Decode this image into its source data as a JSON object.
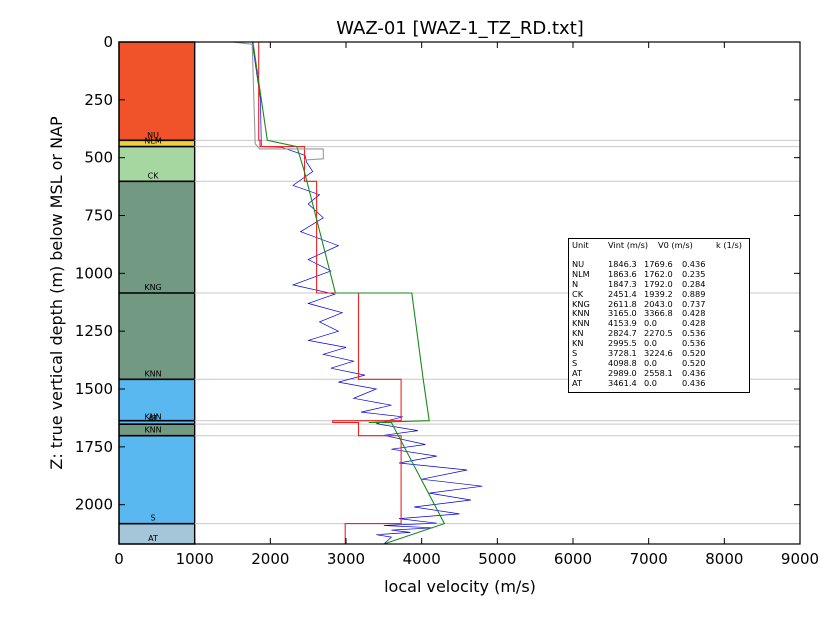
{
  "chart_data": {
    "type": "line",
    "title": "WAZ-01 [WAZ-1_TZ_RD.txt]",
    "xlabel": "local velocity (m/s)",
    "ylabel": "Z: true vertical depth (m) below MSL or NAP",
    "xlim": [
      0,
      9000
    ],
    "ylim": [
      2170,
      0
    ],
    "x_ticks": [
      "0",
      "1000",
      "2000",
      "3000",
      "4000",
      "5000",
      "6000",
      "7000",
      "8000",
      "9000"
    ],
    "y_ticks": [
      "0",
      "250",
      "500",
      "750",
      "1000",
      "1250",
      "1500",
      "1750",
      "2000"
    ],
    "y_tick_values": [
      0,
      250,
      500,
      750,
      1000,
      1250,
      1500,
      1750,
      2000
    ],
    "x_tick_values": [
      0,
      1000,
      2000,
      3000,
      4000,
      5000,
      6000,
      7000,
      8000,
      9000
    ],
    "strat_column": {
      "x_range": [
        0,
        1000
      ],
      "units": [
        {
          "label": "",
          "top": 0,
          "bottom": 425,
          "color": "#f0522a"
        },
        {
          "label": "NU",
          "top": 425,
          "bottom": 427,
          "color": "#f0522a"
        },
        {
          "label": "NLM",
          "top": 427,
          "bottom": 452,
          "color": "#f0d13a"
        },
        {
          "label": "CK",
          "top": 452,
          "bottom": 602,
          "color": "#a6d7a0"
        },
        {
          "label": "KNG",
          "top": 602,
          "bottom": 1085,
          "color": "#729a82"
        },
        {
          "label": "KNN",
          "top": 1085,
          "bottom": 1458,
          "color": "#729a82"
        },
        {
          "label": "KNN",
          "top": 1458,
          "bottom": 1645,
          "color": "#58b8ef"
        },
        {
          "label": "AT",
          "top": 1645,
          "bottom": 1652,
          "color": "#58b8ef"
        },
        {
          "label": "KNN",
          "top": 1652,
          "bottom": 1702,
          "color": "#729a82"
        },
        {
          "label": "S",
          "top": 1702,
          "bottom": 2082,
          "color": "#58b8ef"
        },
        {
          "label": "AT",
          "top": 2082,
          "bottom": 2170,
          "color": "#a4c6d8"
        }
      ],
      "boundaries": [
        425,
        452,
        602,
        1085,
        1458,
        1637,
        1652,
        1702,
        2082
      ]
    },
    "series": [
      {
        "color": "#0000dd",
        "x": [
          1760,
          1870,
          1880,
          2150,
          2460,
          2480,
          2560,
          2300,
          2650,
          2500,
          2700,
          2400,
          2900,
          2500,
          2800,
          2300,
          2850,
          2500,
          2950,
          2650,
          2900,
          2500,
          3000,
          2700,
          3100,
          2800,
          3250,
          2900,
          3400,
          3100,
          3600,
          3200,
          3750,
          3400,
          3950,
          3500,
          4050,
          3600,
          4200,
          3700,
          4600,
          4000,
          4800,
          4100,
          4650,
          3900,
          4500,
          3700,
          4200,
          3500,
          4150,
          3600,
          3850,
          3400,
          3600,
          3500
        ],
        "y": [
          0,
          250,
          452,
          455,
          490,
          520,
          560,
          620,
          660,
          700,
          760,
          820,
          880,
          940,
          990,
          1050,
          1090,
          1130,
          1170,
          1210,
          1250,
          1290,
          1320,
          1350,
          1380,
          1410,
          1440,
          1470,
          1500,
          1540,
          1570,
          1600,
          1620,
          1650,
          1680,
          1700,
          1740,
          1760,
          1790,
          1820,
          1850,
          1890,
          1920,
          1950,
          1980,
          2010,
          2040,
          2060,
          2080,
          2090,
          2100,
          2110,
          2120,
          2130,
          2140,
          2170
        ]
      },
      {
        "color": "#ee2222",
        "x": [
          1846.3,
          1846.3,
          1863.6,
          1863.6,
          2451.4,
          2451.4,
          2611.8,
          2611.8,
          3165.0,
          3165.0,
          3728.1,
          3728.1,
          2824.7,
          2824.7,
          3165.0,
          3165.0,
          3728.1,
          3728.1,
          2989.0,
          2989.0
        ],
        "y": [
          0,
          425,
          425,
          452,
          452,
          602,
          602,
          1085,
          1085,
          1458,
          1458,
          1637,
          1637,
          1645,
          1645,
          1702,
          1702,
          2082,
          2082,
          2170
        ]
      },
      {
        "color": "#1a8a1a",
        "x": [
          1769.6,
          1960,
          2350,
          2450,
          2860,
          3870,
          4020,
          4100,
          3300,
          3600,
          4300,
          3500
        ],
        "y": [
          0,
          425,
          452,
          560,
          1085,
          1085,
          1458,
          1637,
          1645,
          1645,
          2082,
          2170
        ]
      },
      {
        "color": "#999999",
        "x": [
          1500,
          1760,
          1800,
          1860,
          2700,
          2700,
          2450
        ],
        "y": [
          0,
          10,
          440,
          462,
          462,
          505,
          510
        ]
      }
    ],
    "grid": false,
    "legend": "none"
  },
  "table": {
    "header": [
      "Unit",
      "Vint (m/s)",
      "V0 (m/s)",
      "k (1/s)"
    ],
    "rows": [
      [
        "NU",
        "1846.3",
        "1769.6",
        "0.436"
      ],
      [
        "NLM",
        "1863.6",
        "1762.0",
        "0.235"
      ],
      [
        "N",
        "1847.3",
        "1792.0",
        "0.284"
      ],
      [
        "CK",
        "2451.4",
        "1939.2",
        "0.889"
      ],
      [
        "KNG",
        "2611.8",
        "2043.0",
        "0.737"
      ],
      [
        "KNN",
        "3165.0",
        "3366.8",
        "0.428"
      ],
      [
        "KNN",
        "4153.9",
        "0.0",
        "0.428"
      ],
      [
        "KN",
        "2824.7",
        "2270.5",
        "0.536"
      ],
      [
        "KN",
        "2995.5",
        "0.0",
        "0.536"
      ],
      [
        "S",
        "3728.1",
        "3224.6",
        "0.520"
      ],
      [
        "S",
        "4098.8",
        "0.0",
        "0.520"
      ],
      [
        "AT",
        "2989.0",
        "2558.1",
        "0.436"
      ],
      [
        "AT",
        "3461.4",
        "0.0",
        "0.436"
      ]
    ]
  }
}
